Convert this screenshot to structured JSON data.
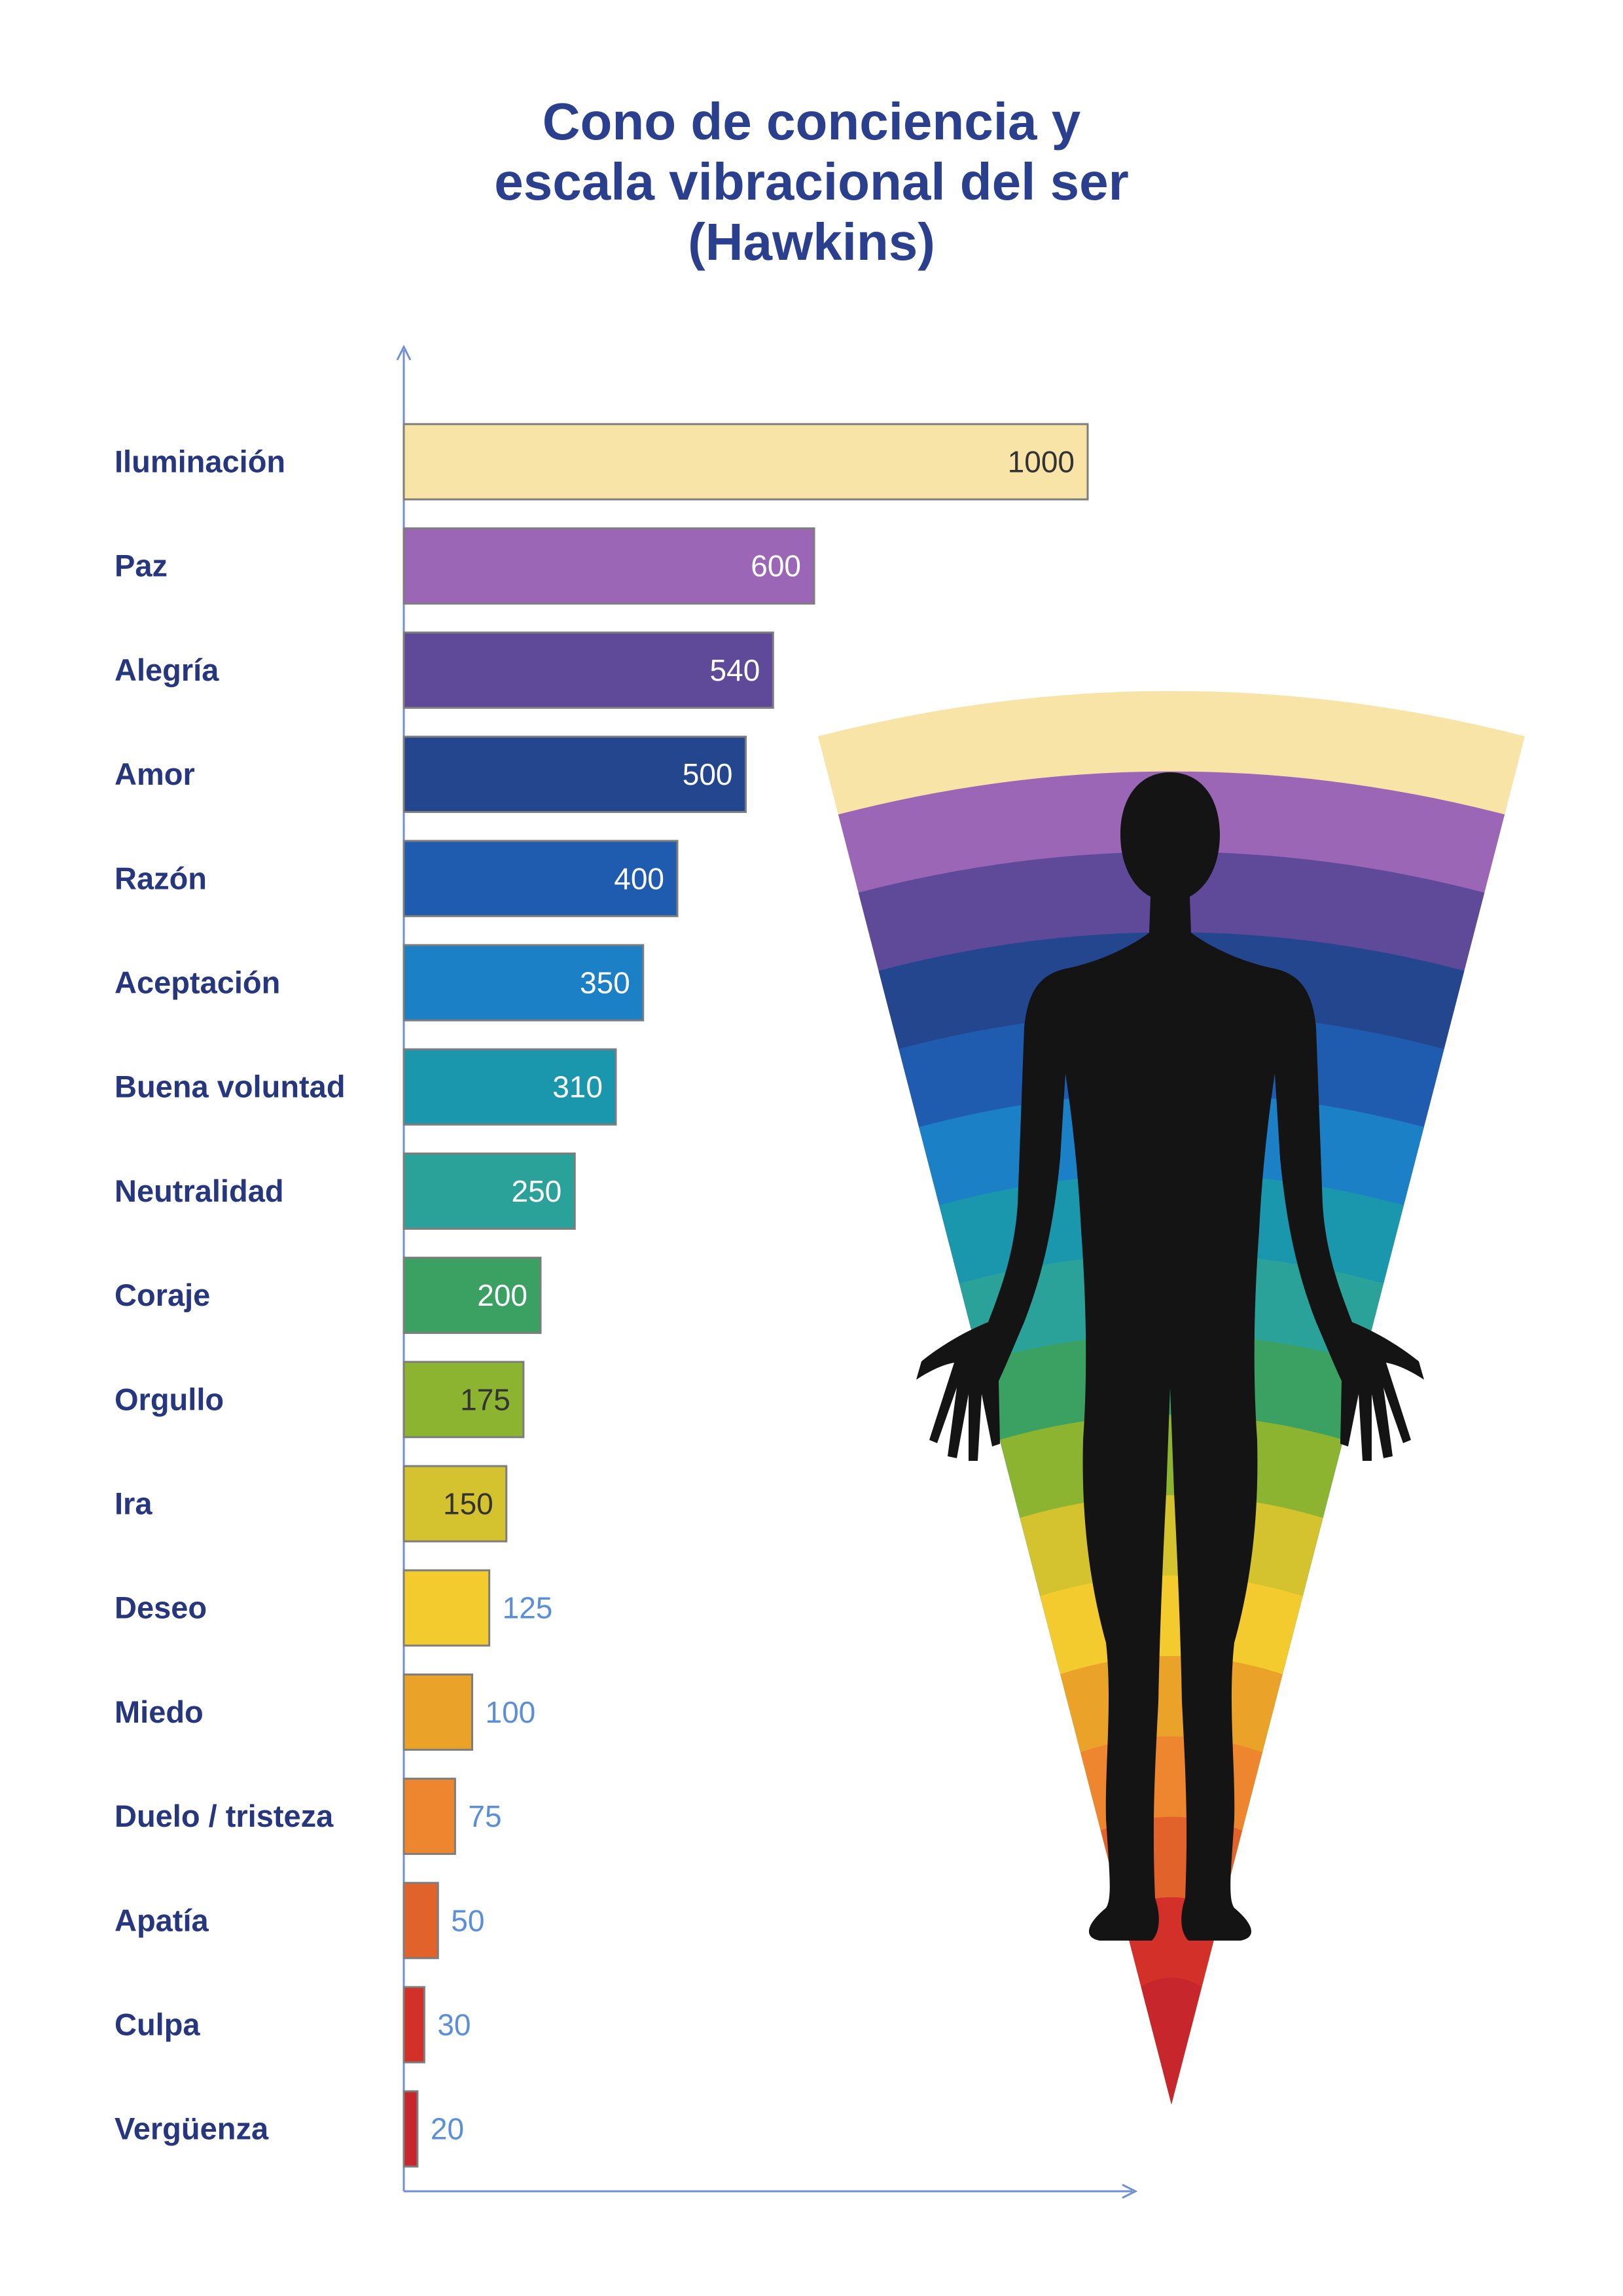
{
  "title": {
    "line1": "Cono de conciencia y",
    "line2": "escala vibracional del ser",
    "line3": "(Hawkins)"
  },
  "chart_data": {
    "type": "bar",
    "orientation": "horizontal",
    "title": "Cono de conciencia y escala vibracional del ser (Hawkins)",
    "xlabel": "",
    "ylabel": "",
    "xlim": [
      0,
      1100
    ],
    "grid": false,
    "legend": "none",
    "categories": [
      "Iluminación",
      "Paz",
      "Alegría",
      "Amor",
      "Razón",
      "Aceptación",
      "Buena voluntad",
      "Neutralidad",
      "Coraje",
      "Orgullo",
      "Ira",
      "Deseo",
      "Miedo",
      "Duelo / tristeza",
      "Apatía",
      "Culpa",
      "Vergüenza"
    ],
    "values": [
      1000,
      600,
      540,
      500,
      400,
      350,
      310,
      250,
      200,
      175,
      150,
      125,
      100,
      75,
      50,
      30,
      20
    ],
    "colors": [
      "#f9e4a8",
      "#9b66b6",
      "#5f4a9a",
      "#24468f",
      "#1f5cb0",
      "#1c80c6",
      "#1a97ac",
      "#2aa299",
      "#3aa162",
      "#8db431",
      "#d4c22e",
      "#f4cb2e",
      "#eaa229",
      "#ee8630",
      "#e2622c",
      "#d3302a",
      "#c6262c"
    ]
  },
  "cone_colors": [
    "#f9e4a8",
    "#9b66b6",
    "#5f4a9a",
    "#24468f",
    "#1f5cb0",
    "#1c80c6",
    "#1a97ac",
    "#2aa299",
    "#3aa162",
    "#8db431",
    "#d4c22e",
    "#f4cb2e",
    "#eaa229",
    "#ee8630",
    "#e2622c",
    "#d3302a",
    "#c6262c"
  ],
  "axis_color": "#6f8fd8",
  "value_text_color_inside_dark": "#ffffff",
  "value_text_color_inside_light": "#333333",
  "value_text_color_outside": "#5b8ed8"
}
